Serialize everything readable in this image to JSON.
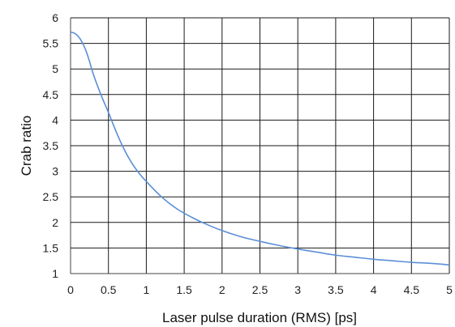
{
  "chart_data": {
    "type": "line",
    "title": "",
    "xlabel": "Laser pulse duration (RMS) [ps]",
    "ylabel": "Crab ratio",
    "xlim": [
      0,
      5
    ],
    "ylim": [
      1,
      6
    ],
    "x_ticks": [
      "0",
      "0.5",
      "1",
      "1.5",
      "2",
      "2.5",
      "3",
      "3.5",
      "4",
      "4.5",
      "5"
    ],
    "y_ticks": [
      "1",
      "1.5",
      "2",
      "2.5",
      "3",
      "3.5",
      "4",
      "4.5",
      "5",
      "5.5",
      "6"
    ],
    "grid": true,
    "legend": "none",
    "line_color": "#5b8fd6",
    "series": [
      {
        "x": [
          0.0,
          0.05,
          0.1,
          0.15,
          0.2,
          0.25,
          0.3,
          0.4,
          0.5,
          0.6,
          0.7,
          0.8,
          0.9,
          1.0,
          1.2,
          1.4,
          1.6,
          1.8,
          2.0,
          2.25,
          2.5,
          2.75,
          3.0,
          3.25,
          3.5,
          3.75,
          4.0,
          4.25,
          4.5,
          4.75,
          5.0
        ],
        "y": [
          5.72,
          5.7,
          5.64,
          5.53,
          5.37,
          5.15,
          4.9,
          4.5,
          4.15,
          3.78,
          3.45,
          3.18,
          2.97,
          2.8,
          2.5,
          2.27,
          2.1,
          1.96,
          1.84,
          1.72,
          1.63,
          1.55,
          1.48,
          1.42,
          1.36,
          1.32,
          1.28,
          1.25,
          1.22,
          1.2,
          1.17
        ]
      }
    ]
  }
}
